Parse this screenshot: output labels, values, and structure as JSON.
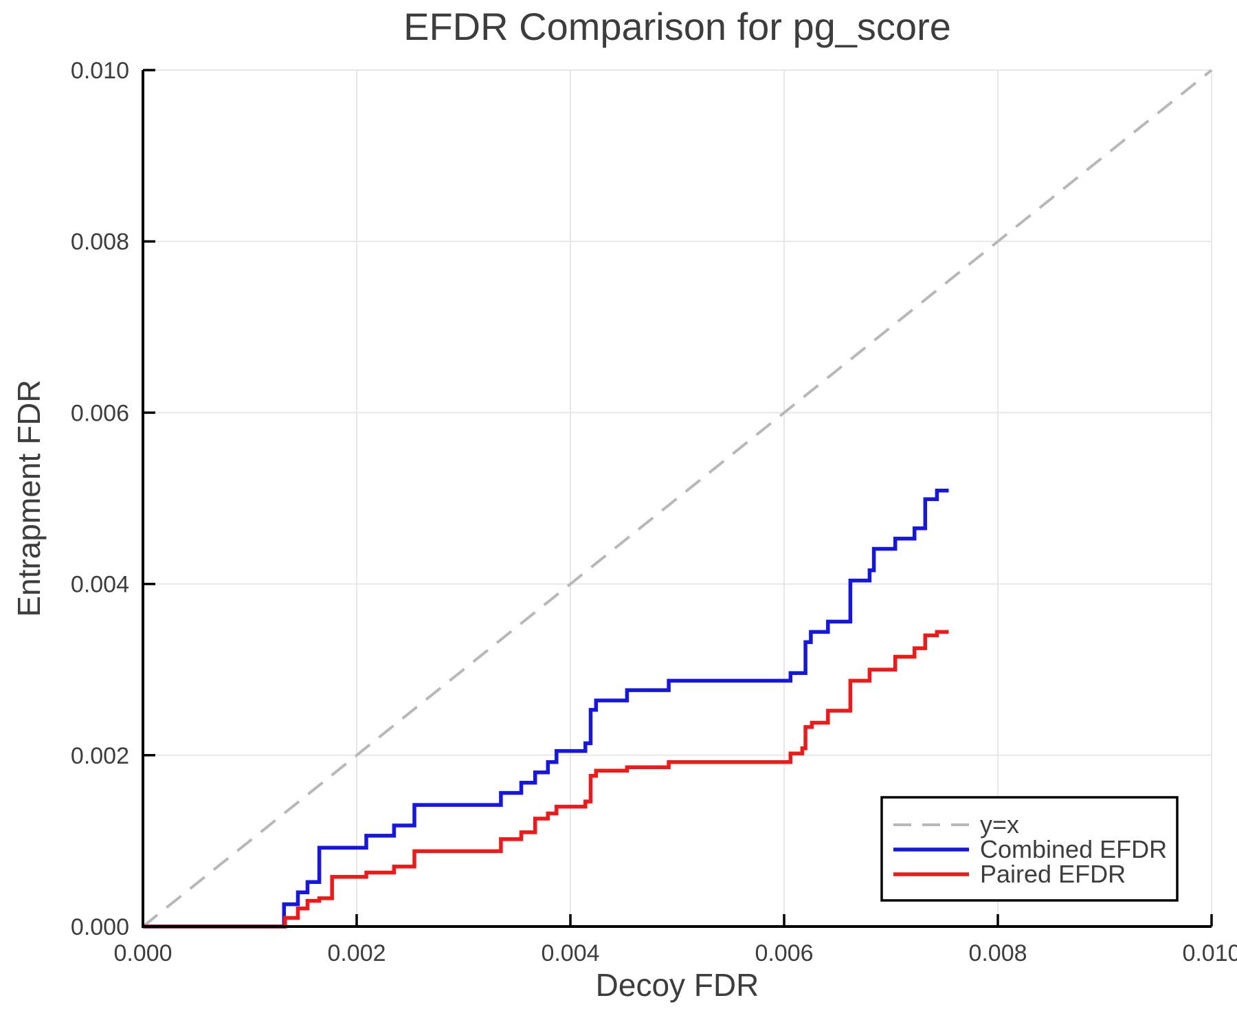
{
  "header": {
    "title": "EFDR Comparison for pg_score"
  },
  "colors": {
    "text": "#3d3d3d",
    "grid": "#e7e7e7",
    "spine": "#000000",
    "reference": "#b8b8b8",
    "combined": "#1515e6",
    "paired": "#f21818",
    "legend_border": "#000000",
    "legend_bg": "#ffffff"
  },
  "chart_data": {
    "type": "line",
    "title": "EFDR Comparison for pg_score",
    "xlabel": "Decoy FDR",
    "ylabel": "Entrapment FDR",
    "xlim": [
      0.0,
      0.01
    ],
    "ylim": [
      0.0,
      0.01
    ],
    "grid": true,
    "x_tick_values": [
      0.0,
      0.002,
      0.004,
      0.006,
      0.008,
      0.01
    ],
    "x_tick_labels": [
      "0.000",
      "0.002",
      "0.004",
      "0.006",
      "0.008",
      "0.010"
    ],
    "y_tick_values": [
      0.0,
      0.002,
      0.004,
      0.006,
      0.008,
      0.01
    ],
    "y_tick_labels": [
      "0.000",
      "0.002",
      "0.004",
      "0.006",
      "0.008",
      "0.010"
    ],
    "legend": {
      "position": "lower-right",
      "items": [
        "y=x",
        "Combined EFDR",
        "Paired EFDR"
      ]
    },
    "reference_line": {
      "name": "y=x",
      "style": "dashed",
      "color": "#b8b8b8",
      "points": [
        [
          0.0,
          0.0
        ],
        [
          0.01,
          0.01
        ]
      ]
    },
    "series": [
      {
        "name": "Combined EFDR",
        "color": "#1515e6",
        "step": "post",
        "points": [
          [
            0.0,
            0.0
          ],
          [
            0.00132,
            0.00026
          ],
          [
            0.00145,
            0.0004
          ],
          [
            0.00154,
            0.00052
          ],
          [
            0.00165,
            0.00092
          ],
          [
            0.00209,
            0.00106
          ],
          [
            0.00235,
            0.00118
          ],
          [
            0.00254,
            0.00142
          ],
          [
            0.00335,
            0.00156
          ],
          [
            0.00354,
            0.00168
          ],
          [
            0.00367,
            0.0018
          ],
          [
            0.00379,
            0.00192
          ],
          [
            0.00387,
            0.00205
          ],
          [
            0.00414,
            0.00214
          ],
          [
            0.00419,
            0.00253
          ],
          [
            0.00424,
            0.00264
          ],
          [
            0.00453,
            0.00276
          ],
          [
            0.00492,
            0.00287
          ],
          [
            0.00606,
            0.00296
          ],
          [
            0.0062,
            0.00332
          ],
          [
            0.00625,
            0.00344
          ],
          [
            0.00641,
            0.00356
          ],
          [
            0.00662,
            0.00404
          ],
          [
            0.0068,
            0.00416
          ],
          [
            0.00684,
            0.00441
          ],
          [
            0.00704,
            0.00453
          ],
          [
            0.00722,
            0.00465
          ],
          [
            0.00732,
            0.00499
          ],
          [
            0.00743,
            0.00509
          ],
          [
            0.00754,
            0.00509
          ]
        ]
      },
      {
        "name": "Paired EFDR",
        "color": "#f21818",
        "step": "post",
        "points": [
          [
            0.0,
            0.0
          ],
          [
            0.00133,
            0.0001
          ],
          [
            0.00145,
            0.00021
          ],
          [
            0.00154,
            0.0003
          ],
          [
            0.00165,
            0.00033
          ],
          [
            0.00177,
            0.00058
          ],
          [
            0.00209,
            0.00063
          ],
          [
            0.00235,
            0.0007
          ],
          [
            0.00254,
            0.00088
          ],
          [
            0.00335,
            0.00102
          ],
          [
            0.00354,
            0.0011
          ],
          [
            0.00367,
            0.00126
          ],
          [
            0.00379,
            0.00132
          ],
          [
            0.00387,
            0.0014
          ],
          [
            0.00414,
            0.00146
          ],
          [
            0.00419,
            0.00176
          ],
          [
            0.00424,
            0.00182
          ],
          [
            0.00453,
            0.00186
          ],
          [
            0.00492,
            0.00192
          ],
          [
            0.00606,
            0.00202
          ],
          [
            0.00617,
            0.00208
          ],
          [
            0.0062,
            0.00233
          ],
          [
            0.00626,
            0.00238
          ],
          [
            0.00641,
            0.00252
          ],
          [
            0.00662,
            0.00287
          ],
          [
            0.0068,
            0.003
          ],
          [
            0.00704,
            0.00315
          ],
          [
            0.00722,
            0.00325
          ],
          [
            0.00732,
            0.0034
          ],
          [
            0.00743,
            0.00344
          ],
          [
            0.00754,
            0.00344
          ]
        ]
      }
    ]
  }
}
